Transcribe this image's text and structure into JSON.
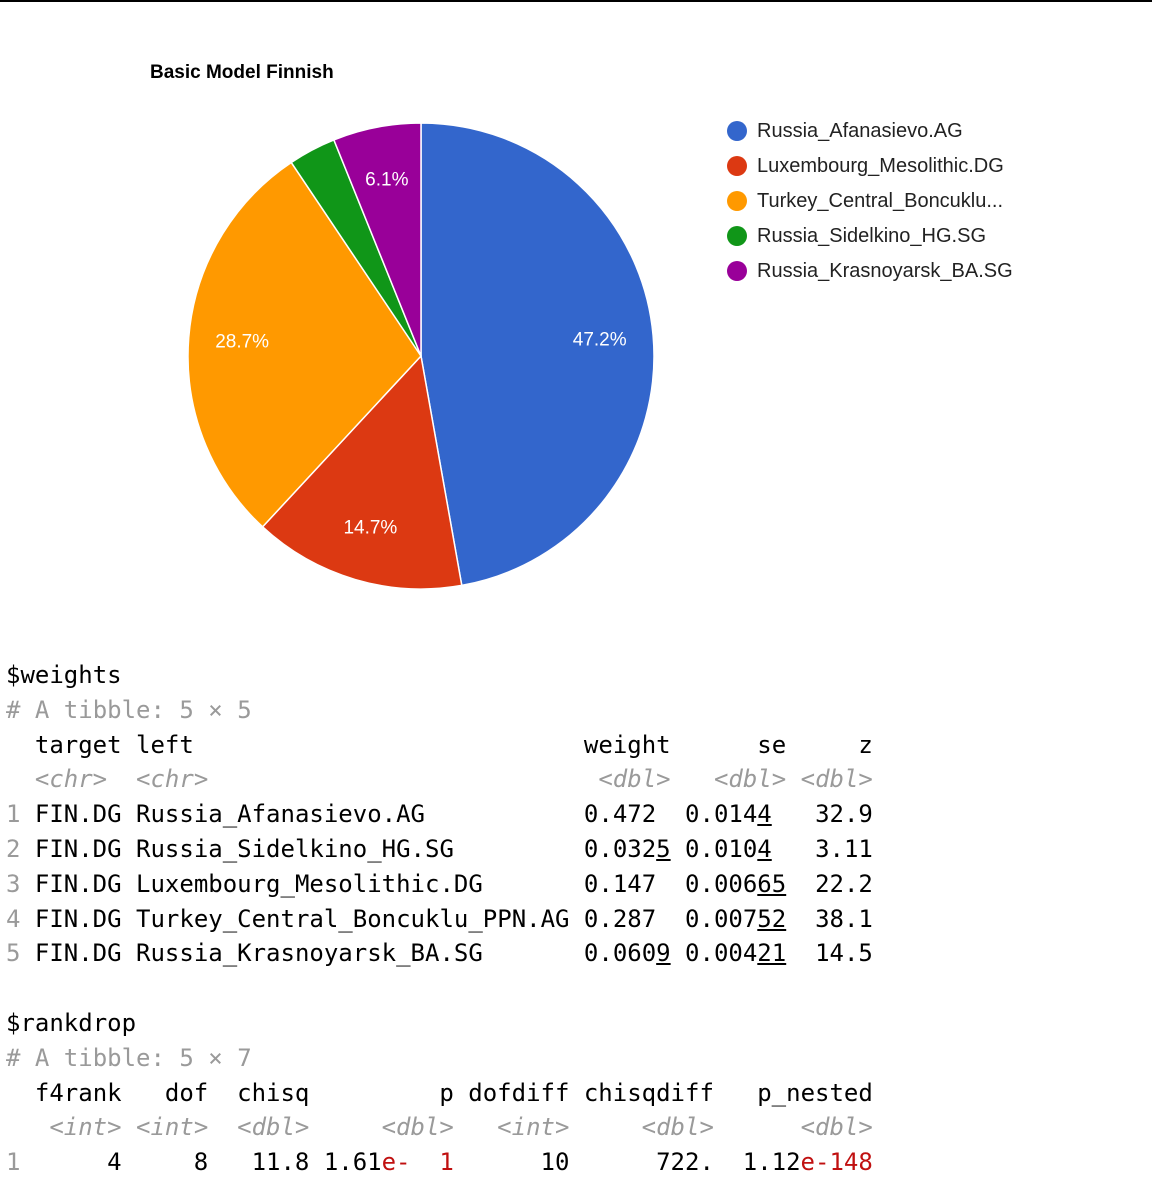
{
  "chart_data": {
    "type": "pie",
    "title": "Basic Model Finnish",
    "slices": [
      {
        "label": "Russia_Afanasievo.AG",
        "value": 47.2,
        "color": "#3366cc",
        "data_label": "47.2%"
      },
      {
        "label": "Luxembourg_Mesolithic.DG",
        "value": 14.7,
        "color": "#dc3912",
        "data_label": "14.7%"
      },
      {
        "label": "Turkey_Central_Boncuklu...",
        "value": 28.7,
        "color": "#ff9900",
        "data_label": "28.7%"
      },
      {
        "label": "Russia_Sidelkino_HG.SG",
        "value": 3.3,
        "color": "#109618",
        "data_label": ""
      },
      {
        "label": "Russia_Krasnoyarsk_BA.SG",
        "value": 6.1,
        "color": "#990099",
        "data_label": "6.1%"
      }
    ],
    "legend_position": "right"
  },
  "weights": {
    "header": "$weights",
    "tibble_info": "# A tibble: 5 × 5",
    "columns": [
      "target",
      "left",
      "weight",
      "se",
      "z"
    ],
    "types": [
      "<chr>",
      "<chr>",
      "<dbl>",
      "<dbl>",
      "<dbl>"
    ],
    "rows": [
      {
        "n": "1",
        "target": "FIN.DG",
        "left": "Russia_Afanasievo.AG",
        "weight": "0.472",
        "weight_ul": "",
        "se": "0.014",
        "se_ul": "4",
        "z": "32.9"
      },
      {
        "n": "2",
        "target": "FIN.DG",
        "left": "Russia_Sidelkino_HG.SG",
        "weight": "0.032",
        "weight_ul": "5",
        "se": "0.010",
        "se_ul": "4",
        "z": "3.11"
      },
      {
        "n": "3",
        "target": "FIN.DG",
        "left": "Luxembourg_Mesolithic.DG",
        "weight": "0.147",
        "weight_ul": "",
        "se": "0.006",
        "se_ul": "65",
        "z": "22.2"
      },
      {
        "n": "4",
        "target": "FIN.DG",
        "left": "Turkey_Central_Boncuklu_PPN.AG",
        "weight": "0.287",
        "weight_ul": "",
        "se": "0.007",
        "se_ul": "52",
        "z": "38.1"
      },
      {
        "n": "5",
        "target": "FIN.DG",
        "left": "Russia_Krasnoyarsk_BA.SG",
        "weight": "0.060",
        "weight_ul": "9",
        "se": "0.004",
        "se_ul": "21",
        "z": "14.5"
      }
    ]
  },
  "rankdrop": {
    "header": "$rankdrop",
    "tibble_info": "# A tibble: 5 × 7",
    "columns": [
      "f4rank",
      "dof",
      "chisq",
      "p",
      "dofdiff",
      "chisqdiff",
      "p_nested"
    ],
    "types": [
      "<int>",
      "<int>",
      "<dbl>",
      "<dbl>",
      "<int>",
      "<dbl>",
      "<dbl>"
    ],
    "rows": [
      {
        "n": "1",
        "f4rank": "4",
        "dof": "8",
        "chisq": "11.8",
        "p_base": "1.61",
        "p_exp_e": "e-",
        "p_exp_n": "1",
        "dofdiff": "10",
        "chisqdiff": "722.",
        "pn_base": "1.12",
        "pn_exp_e": "e-",
        "pn_exp_n": "148"
      }
    ]
  }
}
